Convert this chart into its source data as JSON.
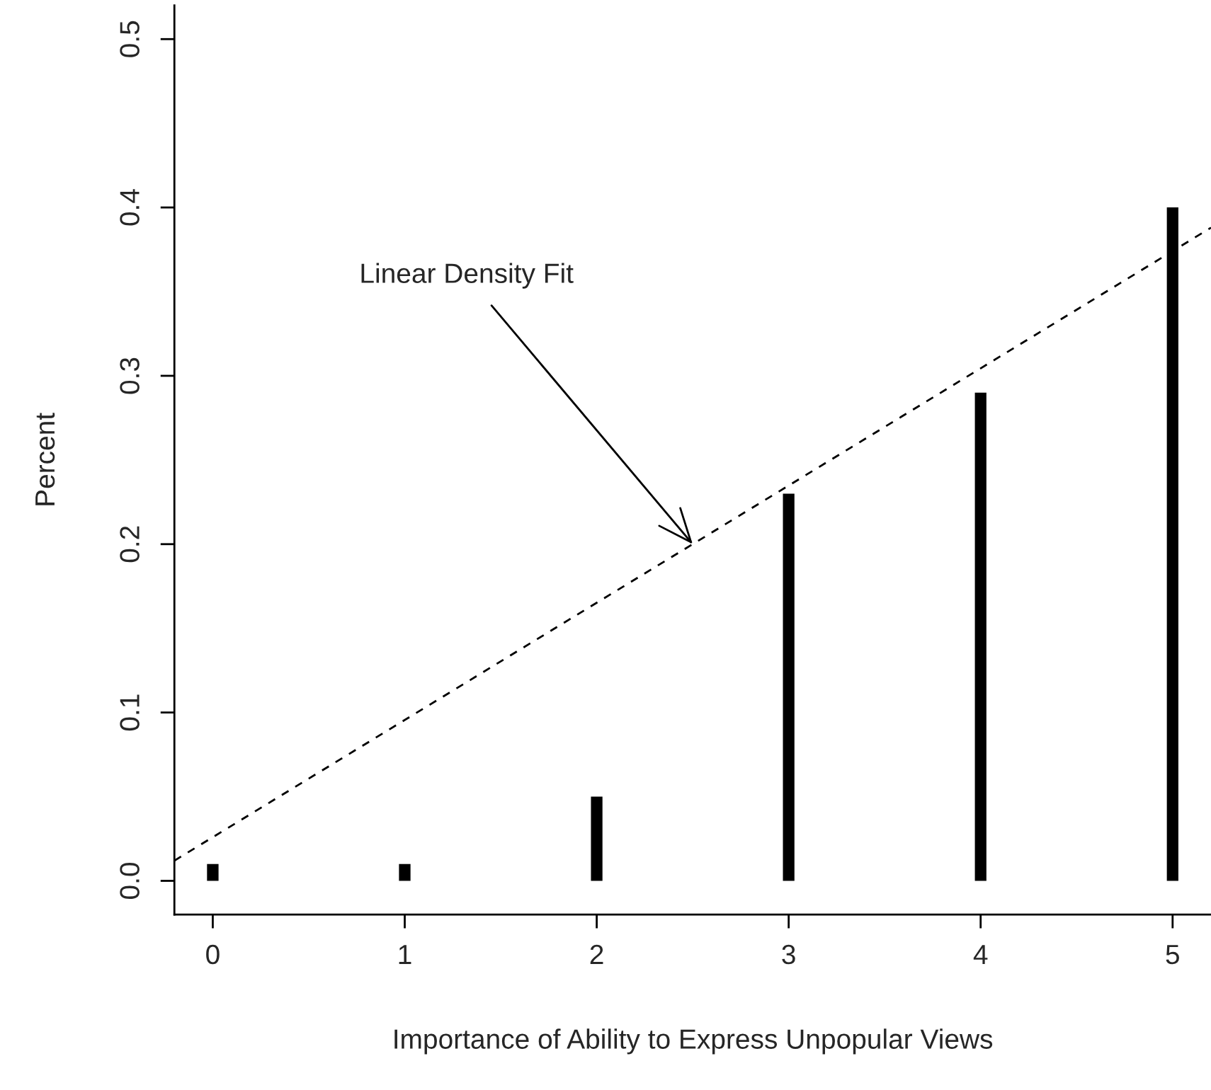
{
  "chart_data": {
    "type": "bar",
    "xlabel": "Importance of Ability to Express Unpopular Views",
    "ylabel": "Percent",
    "x": [
      0,
      1,
      2,
      3,
      4,
      5
    ],
    "series": [
      {
        "color": "#000000",
        "values": [
          0.01,
          0.01,
          0.05,
          0.23,
          0.29,
          0.4
        ]
      },
      {
        "type": "line",
        "color": "#000000",
        "line_style": "dashed",
        "x": [
          -0.2,
          5.2
        ],
        "values": [
          0.012,
          0.388
        ]
      }
    ],
    "xlim": [
      -0.2,
      5.2
    ],
    "ylim": [
      -0.02,
      0.52
    ],
    "xticks": [
      0,
      1,
      2,
      3,
      4,
      5
    ],
    "yticks": [
      {
        "value": 0.0,
        "label": "0.0"
      },
      {
        "value": 0.1,
        "label": "0.1"
      },
      {
        "value": 0.2,
        "label": "0.2"
      },
      {
        "value": 0.3,
        "label": "0.3"
      },
      {
        "value": 0.4,
        "label": "0.4"
      },
      {
        "value": 0.5,
        "label": "0.5"
      }
    ],
    "grid": false,
    "legend": false,
    "annotations": [
      {
        "text": "Linear Density Fit",
        "x": 2.5,
        "y": 0.2
      }
    ]
  }
}
